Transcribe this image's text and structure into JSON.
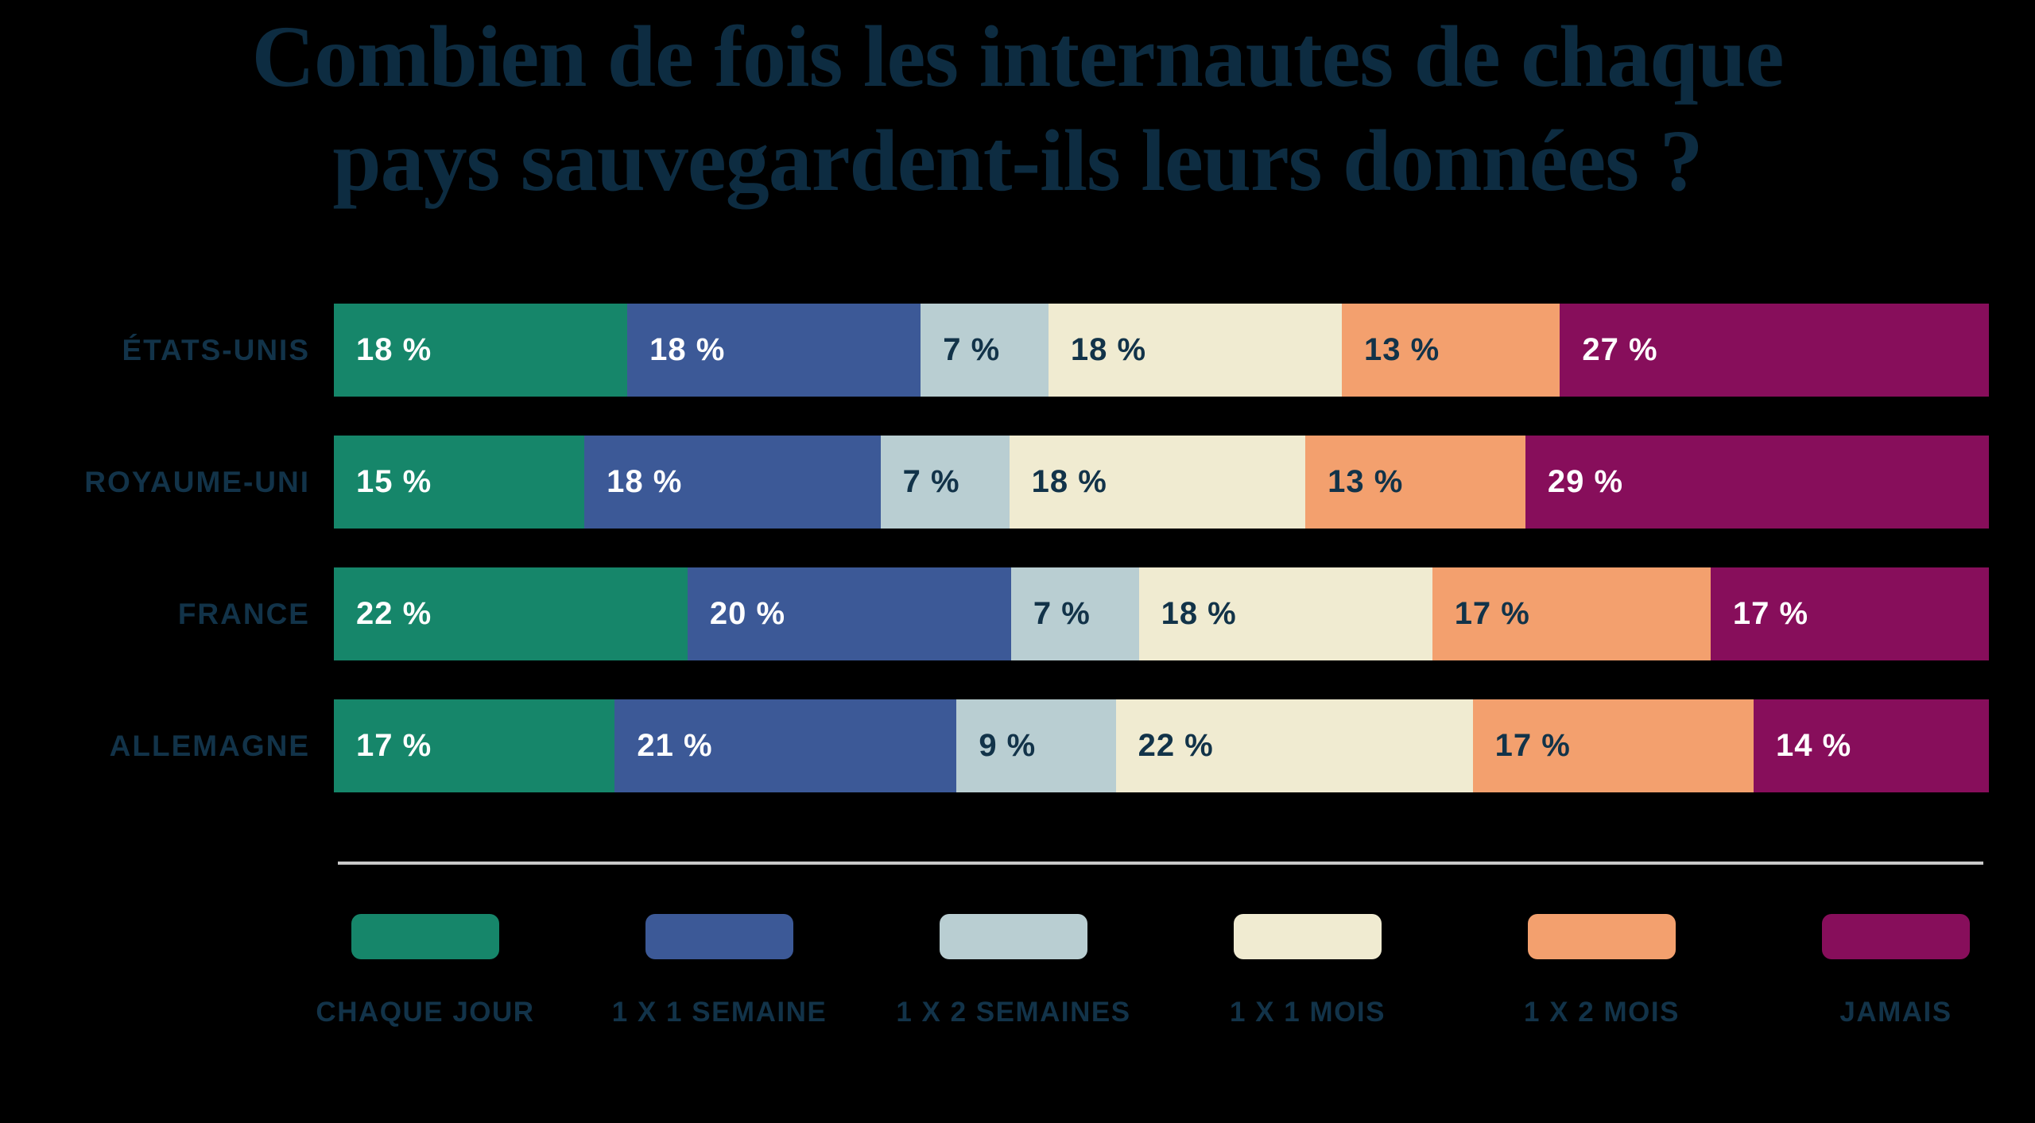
{
  "title": {
    "line1": "Combien de fois les internautes de chaque",
    "line2": "pays sauvegardent-ils leurs données ?"
  },
  "colors": {
    "background": "#000000",
    "title_navy": "#0d2c41",
    "label_navy": "#123349",
    "divider_gray": "#c9c9c9",
    "green": "#16866a",
    "blue": "#3c5997",
    "light_blue": "#b9ced2",
    "cream": "#f0ebd1",
    "orange": "#f3a06e",
    "magenta": "#870e5b",
    "text_on_dark": "#ffffff"
  },
  "chart_data": {
    "type": "bar",
    "subtype": "horizontal-stacked-100",
    "title": "Combien de fois les internautes de chaque pays sauvegardent-ils leurs données ?",
    "categories": [
      "ÉTATS-UNIS",
      "ROYAUME-UNI",
      "FRANCE",
      "ALLEMAGNE"
    ],
    "series": [
      {
        "name": "CHAQUE JOUR",
        "color": "#16866a",
        "text_color": "#ffffff",
        "values": [
          18,
          15,
          22,
          17
        ]
      },
      {
        "name": "1 X 1 SEMAINE",
        "color": "#3c5997",
        "text_color": "#ffffff",
        "values": [
          18,
          18,
          20,
          21
        ]
      },
      {
        "name": "1 X 2 SEMAINES",
        "color": "#b9ced2",
        "text_color": "#123349",
        "values": [
          7,
          7,
          7,
          9
        ]
      },
      {
        "name": "1 X 1 MOIS",
        "color": "#f0ebd1",
        "text_color": "#123349",
        "values": [
          18,
          18,
          18,
          22
        ]
      },
      {
        "name": "1 X 2 MOIS",
        "color": "#f3a06e",
        "text_color": "#123349",
        "values": [
          13,
          13,
          17,
          17
        ]
      },
      {
        "name": "JAMAIS",
        "color": "#870e5b",
        "text_color": "#ffffff",
        "values": [
          27,
          29,
          17,
          14
        ]
      }
    ],
    "value_suffix": " %",
    "legend_position": "bottom",
    "axis": "none",
    "grid": false
  },
  "legend": {
    "items": [
      {
        "label": "CHAQUE JOUR",
        "color": "#16866a"
      },
      {
        "label": "1 X 1 SEMAINE",
        "color": "#3c5997"
      },
      {
        "label": "1 X 2 SEMAINES",
        "color": "#b9ced2"
      },
      {
        "label": "1 X 1 MOIS",
        "color": "#f0ebd1"
      },
      {
        "label": "1 X 2 MOIS",
        "color": "#f3a06e"
      },
      {
        "label": "JAMAIS",
        "color": "#870e5b"
      }
    ]
  }
}
